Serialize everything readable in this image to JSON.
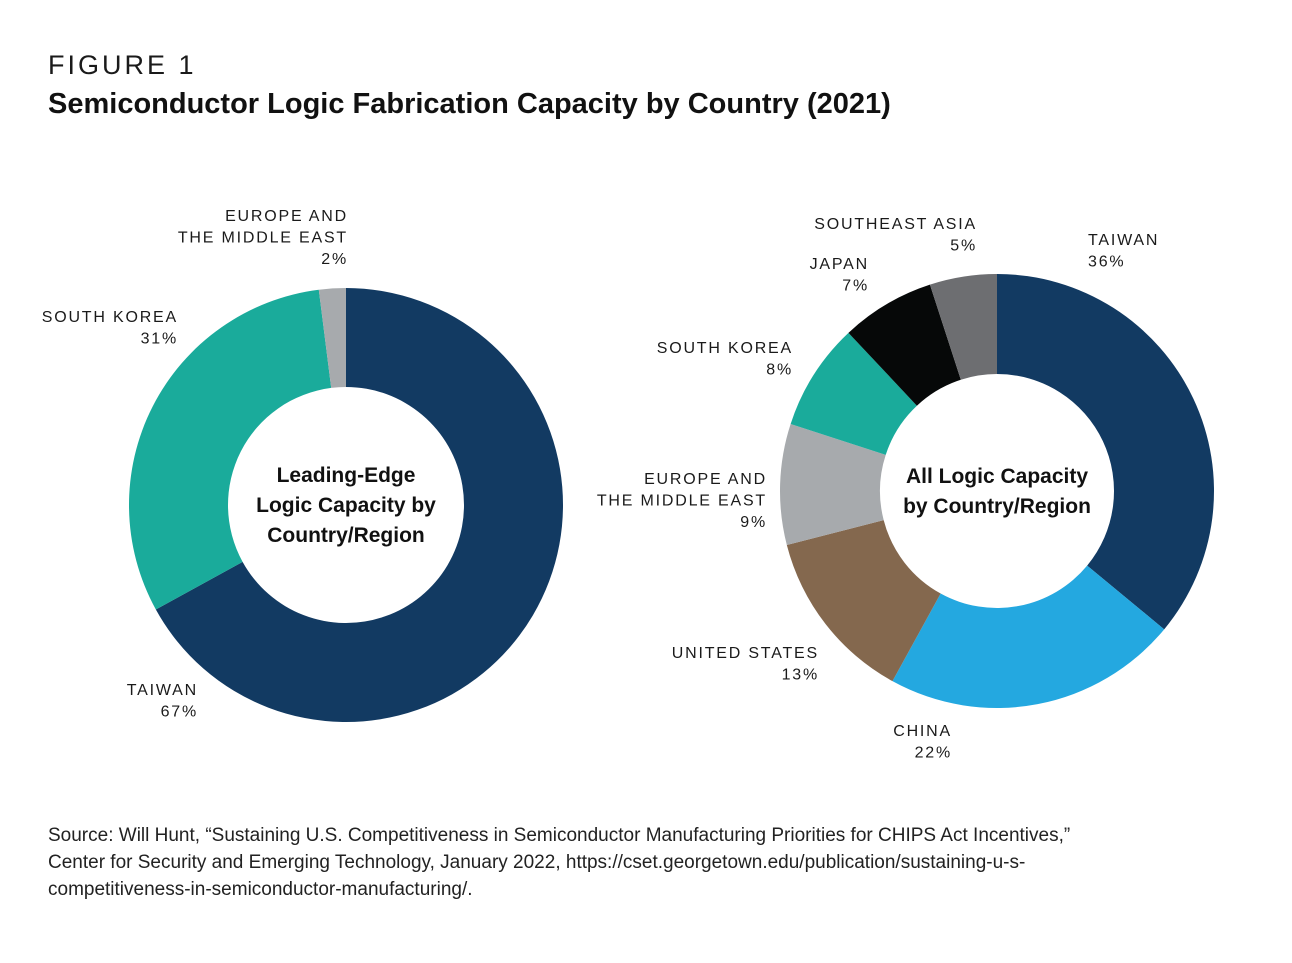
{
  "figure": {
    "label": "FIGURE 1",
    "title": "Semiconductor Logic Fabrication Capacity by Country (2021)"
  },
  "chart_data": [
    {
      "type": "pie",
      "center_label": [
        "Leading-Edge",
        "Logic Capacity by",
        "Country/Region"
      ],
      "categories": [
        "TAIWAN",
        "SOUTH KOREA",
        "EUROPE AND THE MIDDLE EAST"
      ],
      "label_lines": [
        [
          "TAIWAN"
        ],
        [
          "SOUTH KOREA"
        ],
        [
          "EUROPE AND",
          "THE MIDDLE EAST"
        ]
      ],
      "values": [
        67,
        31,
        2
      ],
      "value_labels": [
        "67%",
        "31%",
        "2%"
      ],
      "colors": [
        "#123a62",
        "#1aab9b",
        "#a7aaad"
      ],
      "start": "12 o'clock",
      "direction": "clockwise"
    },
    {
      "type": "pie",
      "center_label": [
        "All Logic Capacity",
        "by Country/Region"
      ],
      "categories": [
        "TAIWAN",
        "CHINA",
        "UNITED STATES",
        "EUROPE AND THE MIDDLE EAST",
        "SOUTH KOREA",
        "JAPAN",
        "SOUTHEAST ASIA"
      ],
      "label_lines": [
        [
          "TAIWAN"
        ],
        [
          "CHINA"
        ],
        [
          "UNITED STATES"
        ],
        [
          "EUROPE AND",
          "THE MIDDLE EAST"
        ],
        [
          "SOUTH KOREA"
        ],
        [
          "JAPAN"
        ],
        [
          "SOUTHEAST ASIA"
        ]
      ],
      "values": [
        36,
        22,
        13,
        9,
        8,
        7,
        5
      ],
      "value_labels": [
        "36%",
        "22%",
        "13%",
        "9%",
        "8%",
        "7%",
        "5%"
      ],
      "colors": [
        "#123a62",
        "#24a8e0",
        "#84684e",
        "#a7aaad",
        "#1aab9b",
        "#060808",
        "#6d6e71"
      ],
      "start": "12 o'clock",
      "direction": "clockwise"
    }
  ],
  "source": {
    "line1": "Source: Will Hunt, “Sustaining U.S. Competitiveness in Semiconductor Manufacturing Priorities for CHIPS Act Incentives,”",
    "line2": "Center for Security and Emerging Technology, January 2022, https://cset.georgetown.edu/publication/sustaining-u-s-",
    "line3": "competitiveness-in-semiconductor-manufacturing/."
  }
}
